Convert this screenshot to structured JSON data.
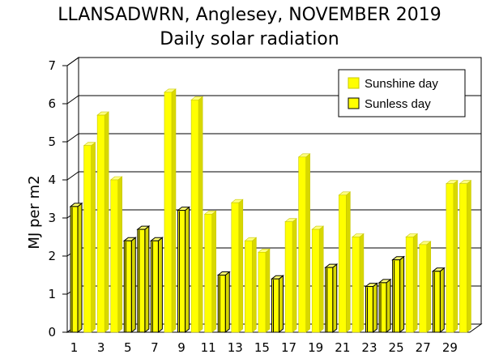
{
  "chart_data": {
    "type": "bar",
    "title": "LLANSADWRN, Anglesey, NOVEMBER 2019",
    "subtitle": "Daily solar radiation",
    "ylabel": "MJ per m2",
    "xlabel": "",
    "ylim": [
      0,
      7
    ],
    "yticks": [
      "0",
      "1",
      "2",
      "3",
      "4",
      "5",
      "6",
      "7"
    ],
    "xtick_labels": [
      "1",
      "3",
      "5",
      "7",
      "9",
      "11",
      "13",
      "15",
      "17",
      "19",
      "21",
      "23",
      "25",
      "27",
      "29"
    ],
    "grid": true,
    "legend_position": "top-right",
    "legend": [
      {
        "label": "Sunshine day",
        "color": "#ffff00"
      },
      {
        "label": "Sunless day",
        "color": "#e8e800"
      }
    ],
    "categories": [
      "1",
      "2",
      "3",
      "4",
      "5",
      "6",
      "7",
      "8",
      "9",
      "10",
      "11",
      "12",
      "13",
      "14",
      "15",
      "16",
      "17",
      "18",
      "19",
      "20",
      "21",
      "22",
      "23",
      "24",
      "25",
      "26",
      "27",
      "28",
      "29",
      "30"
    ],
    "values": [
      3.3,
      4.9,
      5.7,
      4.0,
      2.4,
      2.7,
      2.4,
      6.3,
      3.2,
      6.1,
      3.1,
      1.5,
      3.4,
      2.4,
      2.1,
      1.4,
      2.9,
      4.6,
      2.7,
      1.7,
      3.6,
      2.5,
      1.2,
      1.3,
      1.9,
      2.5,
      2.3,
      1.6,
      3.9,
      3.9
    ],
    "sunless": [
      true,
      false,
      false,
      false,
      true,
      true,
      true,
      false,
      true,
      false,
      false,
      true,
      false,
      false,
      false,
      true,
      false,
      false,
      false,
      true,
      false,
      false,
      true,
      true,
      true,
      false,
      false,
      true,
      false,
      false
    ]
  }
}
